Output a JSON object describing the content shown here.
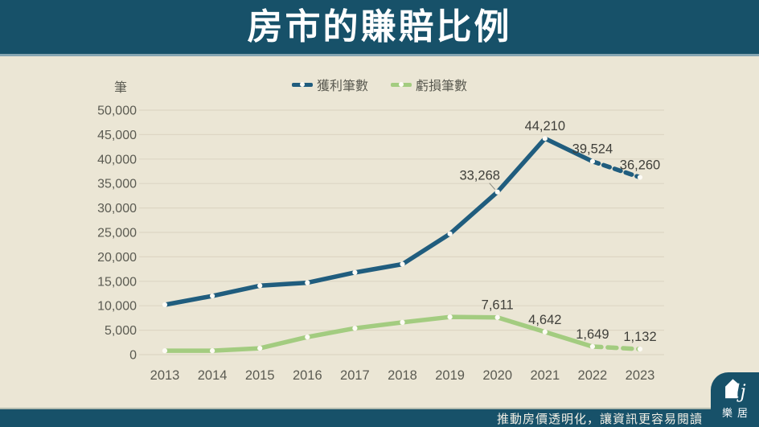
{
  "page": {
    "title": "房市的賺賠比例",
    "footer": {
      "tagline": "推動房價透明化，讓資訊更容易閱讀",
      "logo_text": "樂居",
      "logo_script": "lj"
    },
    "colors": {
      "header_bg": "#175169",
      "content_bg": "#EBE6D5",
      "profit_line": "#205D7E",
      "loss_line": "#A3CC80",
      "gridline": "#DDD6C4",
      "tick_text": "#5B5B52",
      "label_text": "#3F3F3A"
    }
  },
  "chart_data": {
    "type": "line",
    "title": "房市的賺賠比例",
    "unit_label": "筆",
    "categories": [
      "2013",
      "2014",
      "2015",
      "2016",
      "2017",
      "2018",
      "2019",
      "2020",
      "2021",
      "2022",
      "2023"
    ],
    "series": [
      {
        "name": "獲利筆數",
        "color": "#205D7E",
        "values": [
          10200,
          12000,
          14100,
          14700,
          16800,
          18500,
          24700,
          33268,
          44210,
          39524,
          36260
        ],
        "data_labels": [
          null,
          null,
          null,
          null,
          null,
          null,
          null,
          "33,268",
          "44,210",
          "39,524",
          "36,260"
        ],
        "dashed_from_index": 9,
        "dash_pattern": "8 6.5",
        "label_offsets": {
          "7": {
            "dx": -22,
            "dy": -5,
            "leader": true
          }
        }
      },
      {
        "name": "虧損筆數",
        "color": "#A3CC80",
        "values": [
          800,
          800,
          1300,
          3600,
          5400,
          6600,
          7700,
          7611,
          4642,
          1649,
          1132
        ],
        "data_labels": [
          null,
          null,
          null,
          null,
          null,
          null,
          null,
          "7,611",
          "4,642",
          "1,649",
          "1,132"
        ],
        "dashed_from_index": 9,
        "dash_pattern": "11 8"
      }
    ],
    "ylim": [
      0,
      50000
    ],
    "y_tick_step": 5000,
    "grid": true,
    "legend_position": "top-center",
    "marker": "white-dot"
  }
}
